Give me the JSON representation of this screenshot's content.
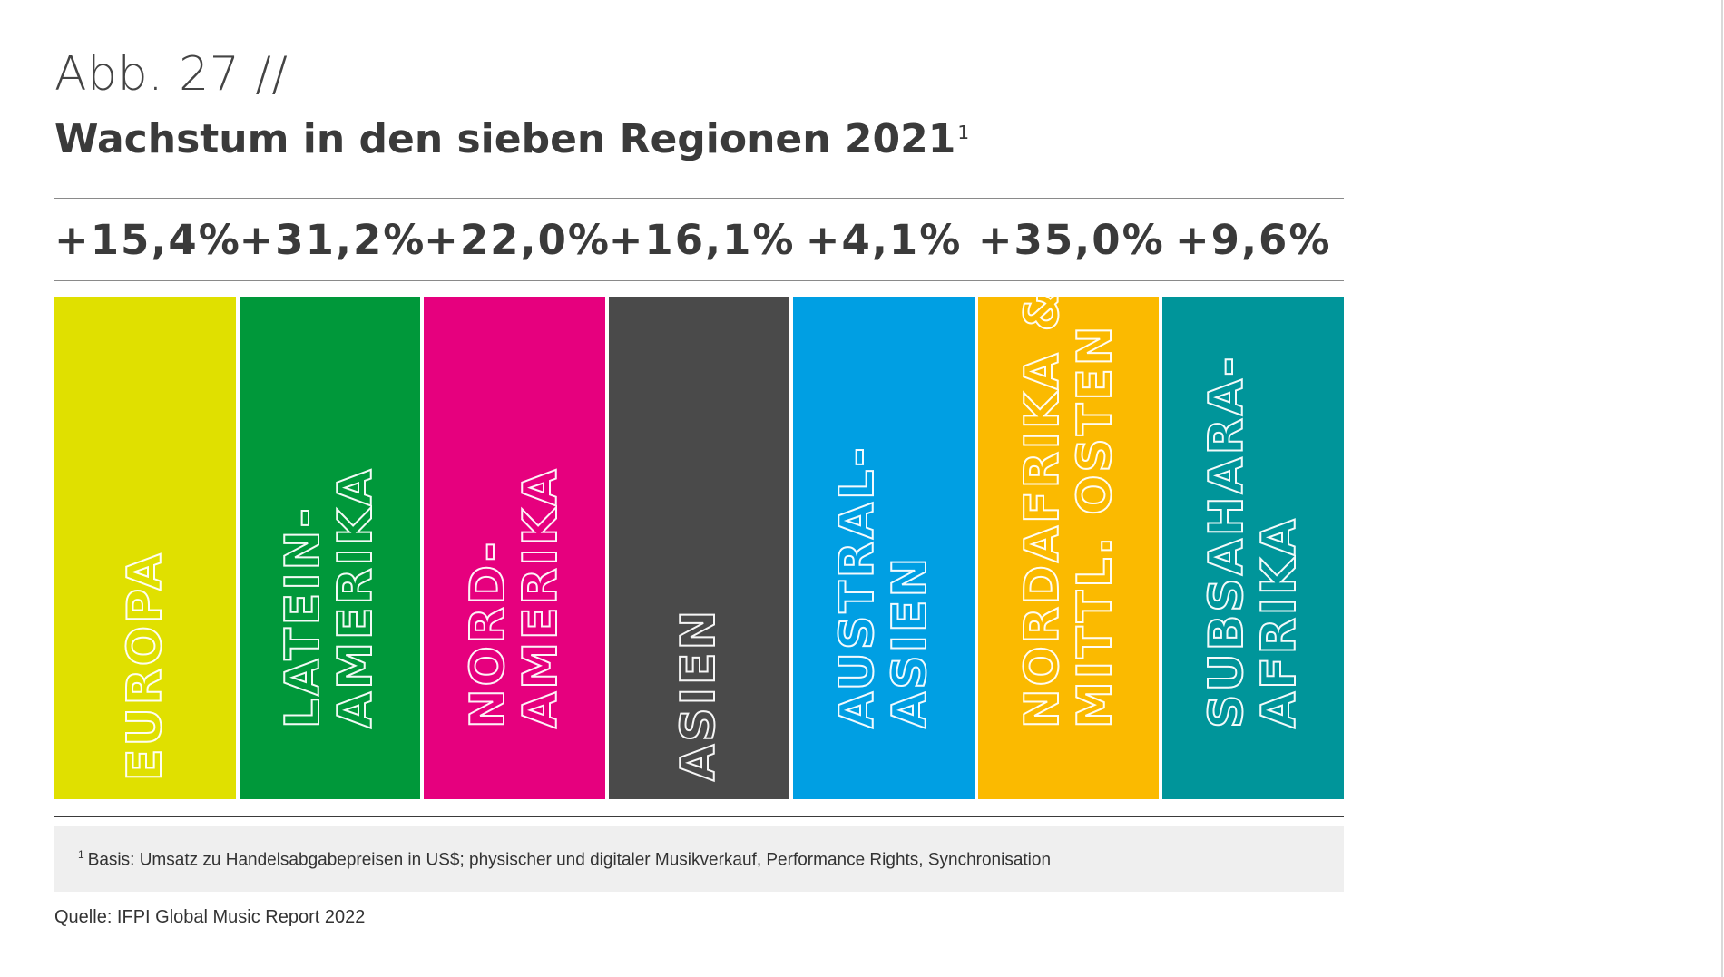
{
  "figure": {
    "label": "Abb. 27 //",
    "title": "Wachstum in den sieben Regionen 2021",
    "title_footnote_marker": "1"
  },
  "chart_data": {
    "type": "bar",
    "title": "Wachstum in den sieben Regionen 2021",
    "categories": [
      "EUROPA",
      "LATEIN-AMERIKA",
      "NORD-AMERIKA",
      "ASIEN",
      "AUSTRAL-ASIEN",
      "NORDAFRIKA & MITTL. OSTEN",
      "SUBSAHARA-AFRIKA"
    ],
    "category_lines": [
      [
        "EUROPA"
      ],
      [
        "LATEIN-",
        "AMERIKA"
      ],
      [
        "NORD-",
        "AMERIKA"
      ],
      [
        "ASIEN"
      ],
      [
        "AUSTRAL-",
        "ASIEN"
      ],
      [
        "NORDAFRIKA &",
        "MITTL. OSTEN"
      ],
      [
        "SUBSAHARA-",
        "AFRIKA"
      ]
    ],
    "values": [
      15.4,
      31.2,
      22.0,
      16.1,
      4.1,
      35.0,
      9.6
    ],
    "value_labels": [
      "+15,4%",
      "+31,2%",
      "+22,0%",
      "+16,1%",
      "+4,1%",
      "+35,0%",
      "+9,6%"
    ],
    "colors": [
      "#e0e000",
      "#00983a",
      "#e6007e",
      "#4a4a4a",
      "#009fe3",
      "#fbba00",
      "#00959a"
    ],
    "legend": "none",
    "grid": false
  },
  "footnote": {
    "marker": "1",
    "text": "Basis: Umsatz zu Handelsabgabepreisen in US$; physischer und digitaler Musikverkauf, Performance Rights, Synchronisation"
  },
  "source": "Quelle: IFPI Global Music Report 2022"
}
